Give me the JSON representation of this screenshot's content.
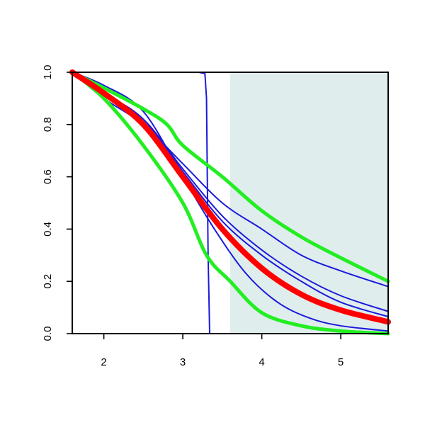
{
  "chart_data": {
    "type": "line",
    "title": "",
    "xlabel": "",
    "ylabel": "",
    "xlim": [
      1.6,
      5.6
    ],
    "ylim": [
      0,
      1
    ],
    "x_ticks": [
      2,
      3,
      4,
      5
    ],
    "x_tick_labels": [
      "2",
      "3",
      "4",
      "5"
    ],
    "y_ticks": [
      0,
      0.2,
      0.4,
      0.6,
      0.8,
      1
    ],
    "y_tick_labels": [
      "0.0",
      "0.2",
      "0.4",
      "0.6",
      "0.8",
      "1.0"
    ],
    "grid": false,
    "legend": "none",
    "shaded_region": {
      "x_start": 3.6,
      "x_end": 5.6,
      "color": "#e0eded"
    },
    "series": [
      {
        "role": "blue-step",
        "color": "#1a1adc",
        "width": 2,
        "points": [
          [
            1.6,
            1.0
          ],
          [
            3.2,
            1.0
          ],
          [
            3.28,
            0.995
          ],
          [
            3.3,
            0.9
          ],
          [
            3.32,
            0.3
          ],
          [
            3.34,
            0.0
          ],
          [
            5.6,
            0.0
          ]
        ]
      },
      {
        "role": "blue",
        "color": "#1a1adc",
        "width": 2,
        "points": [
          [
            1.6,
            1.0
          ],
          [
            2.0,
            0.95
          ],
          [
            2.5,
            0.85
          ],
          [
            3.0,
            0.6
          ],
          [
            3.4,
            0.4
          ],
          [
            3.8,
            0.23
          ],
          [
            4.2,
            0.12
          ],
          [
            4.6,
            0.06
          ],
          [
            5.0,
            0.03
          ],
          [
            5.6,
            0.01
          ]
        ]
      },
      {
        "role": "blue",
        "color": "#1a1adc",
        "width": 2,
        "points": [
          [
            1.6,
            1.0
          ],
          [
            2.0,
            0.92
          ],
          [
            2.5,
            0.82
          ],
          [
            3.0,
            0.62
          ],
          [
            3.5,
            0.43
          ],
          [
            4.0,
            0.3
          ],
          [
            4.5,
            0.2
          ],
          [
            5.0,
            0.12
          ],
          [
            5.6,
            0.065
          ]
        ]
      },
      {
        "role": "blue",
        "color": "#1a1adc",
        "width": 2,
        "points": [
          [
            1.6,
            1.0
          ],
          [
            2.0,
            0.91
          ],
          [
            2.5,
            0.82
          ],
          [
            3.0,
            0.63
          ],
          [
            3.5,
            0.45
          ],
          [
            4.0,
            0.32
          ],
          [
            4.5,
            0.22
          ],
          [
            5.0,
            0.145
          ],
          [
            5.6,
            0.085
          ]
        ]
      },
      {
        "role": "blue",
        "color": "#1a1adc",
        "width": 2,
        "points": [
          [
            1.6,
            1.0
          ],
          [
            2.0,
            0.9
          ],
          [
            2.5,
            0.8
          ],
          [
            3.0,
            0.65
          ],
          [
            3.5,
            0.5
          ],
          [
            4.0,
            0.4
          ],
          [
            4.5,
            0.3
          ],
          [
            5.0,
            0.24
          ],
          [
            5.6,
            0.18
          ]
        ]
      },
      {
        "role": "green",
        "color": "#22ee22",
        "width": 5,
        "points": [
          [
            1.6,
            1.0
          ],
          [
            2.0,
            0.94
          ],
          [
            2.5,
            0.86
          ],
          [
            2.8,
            0.8
          ],
          [
            3.0,
            0.72
          ],
          [
            3.5,
            0.6
          ],
          [
            4.0,
            0.47
          ],
          [
            4.5,
            0.37
          ],
          [
            5.0,
            0.29
          ],
          [
            5.6,
            0.2
          ]
        ]
      },
      {
        "role": "green",
        "color": "#22ee22",
        "width": 5,
        "points": [
          [
            1.6,
            1.0
          ],
          [
            2.0,
            0.9
          ],
          [
            2.5,
            0.72
          ],
          [
            3.0,
            0.5
          ],
          [
            3.3,
            0.3
          ],
          [
            3.6,
            0.2
          ],
          [
            4.0,
            0.08
          ],
          [
            4.5,
            0.03
          ],
          [
            5.0,
            0.01
          ],
          [
            5.6,
            0.0
          ]
        ]
      },
      {
        "role": "red",
        "color": "#ff0000",
        "width": 8,
        "points": [
          [
            1.6,
            1.0
          ],
          [
            2.0,
            0.92
          ],
          [
            2.5,
            0.8
          ],
          [
            3.0,
            0.6
          ],
          [
            3.5,
            0.4
          ],
          [
            4.0,
            0.25
          ],
          [
            4.5,
            0.15
          ],
          [
            5.0,
            0.09
          ],
          [
            5.6,
            0.045
          ]
        ]
      }
    ]
  }
}
